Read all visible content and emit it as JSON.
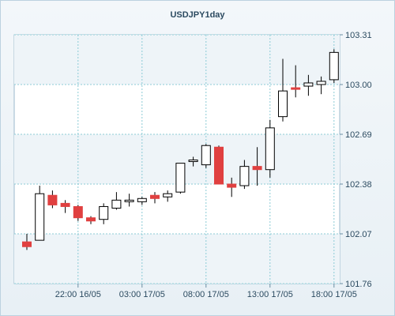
{
  "chart_data": {
    "type": "candlestick",
    "title": "USDJPY1day",
    "y_ticks": [
      "103.31",
      "103.00",
      "102.69",
      "102.38",
      "102.07",
      "101.76"
    ],
    "ylim": [
      101.76,
      103.31
    ],
    "x_tick_labels": [
      "22:00 16/05",
      "03:00 17/05",
      "08:00 17/05",
      "13:00 17/05",
      "18:00 17/05"
    ],
    "grid": true,
    "up_color": "#ffffff",
    "down_color": "#e04040",
    "candles": [
      {
        "open": 102.02,
        "high": 102.07,
        "low": 101.97,
        "close": 101.99
      },
      {
        "open": 102.03,
        "high": 102.37,
        "low": 102.03,
        "close": 102.32
      },
      {
        "open": 102.31,
        "high": 102.34,
        "low": 102.23,
        "close": 102.25
      },
      {
        "open": 102.26,
        "high": 102.28,
        "low": 102.2,
        "close": 102.24
      },
      {
        "open": 102.24,
        "high": 102.25,
        "low": 102.15,
        "close": 102.17
      },
      {
        "open": 102.17,
        "high": 102.18,
        "low": 102.13,
        "close": 102.15
      },
      {
        "open": 102.16,
        "high": 102.26,
        "low": 102.13,
        "close": 102.24
      },
      {
        "open": 102.23,
        "high": 102.33,
        "low": 102.22,
        "close": 102.28
      },
      {
        "open": 102.27,
        "high": 102.32,
        "low": 102.24,
        "close": 102.28
      },
      {
        "open": 102.27,
        "high": 102.3,
        "low": 102.25,
        "close": 102.29
      },
      {
        "open": 102.31,
        "high": 102.33,
        "low": 102.26,
        "close": 102.29
      },
      {
        "open": 102.3,
        "high": 102.34,
        "low": 102.27,
        "close": 102.32
      },
      {
        "open": 102.33,
        "high": 102.51,
        "low": 102.32,
        "close": 102.51
      },
      {
        "open": 102.53,
        "high": 102.55,
        "low": 102.49,
        "close": 102.53
      },
      {
        "open": 102.5,
        "high": 102.63,
        "low": 102.48,
        "close": 102.62
      },
      {
        "open": 102.61,
        "high": 102.62,
        "low": 102.38,
        "close": 102.38
      },
      {
        "open": 102.38,
        "high": 102.42,
        "low": 102.3,
        "close": 102.36
      },
      {
        "open": 102.37,
        "high": 102.53,
        "low": 102.35,
        "close": 102.49
      },
      {
        "open": 102.49,
        "high": 102.61,
        "low": 102.37,
        "close": 102.47
      },
      {
        "open": 102.47,
        "high": 102.78,
        "low": 102.42,
        "close": 102.73
      },
      {
        "open": 102.8,
        "high": 103.16,
        "low": 102.77,
        "close": 102.96
      },
      {
        "open": 102.98,
        "high": 103.12,
        "low": 102.92,
        "close": 102.97
      },
      {
        "open": 102.99,
        "high": 103.06,
        "low": 102.93,
        "close": 103.01
      },
      {
        "open": 103.0,
        "high": 103.05,
        "low": 102.94,
        "close": 103.02
      },
      {
        "open": 103.03,
        "high": 103.22,
        "low": 103.01,
        "close": 103.2
      }
    ]
  }
}
